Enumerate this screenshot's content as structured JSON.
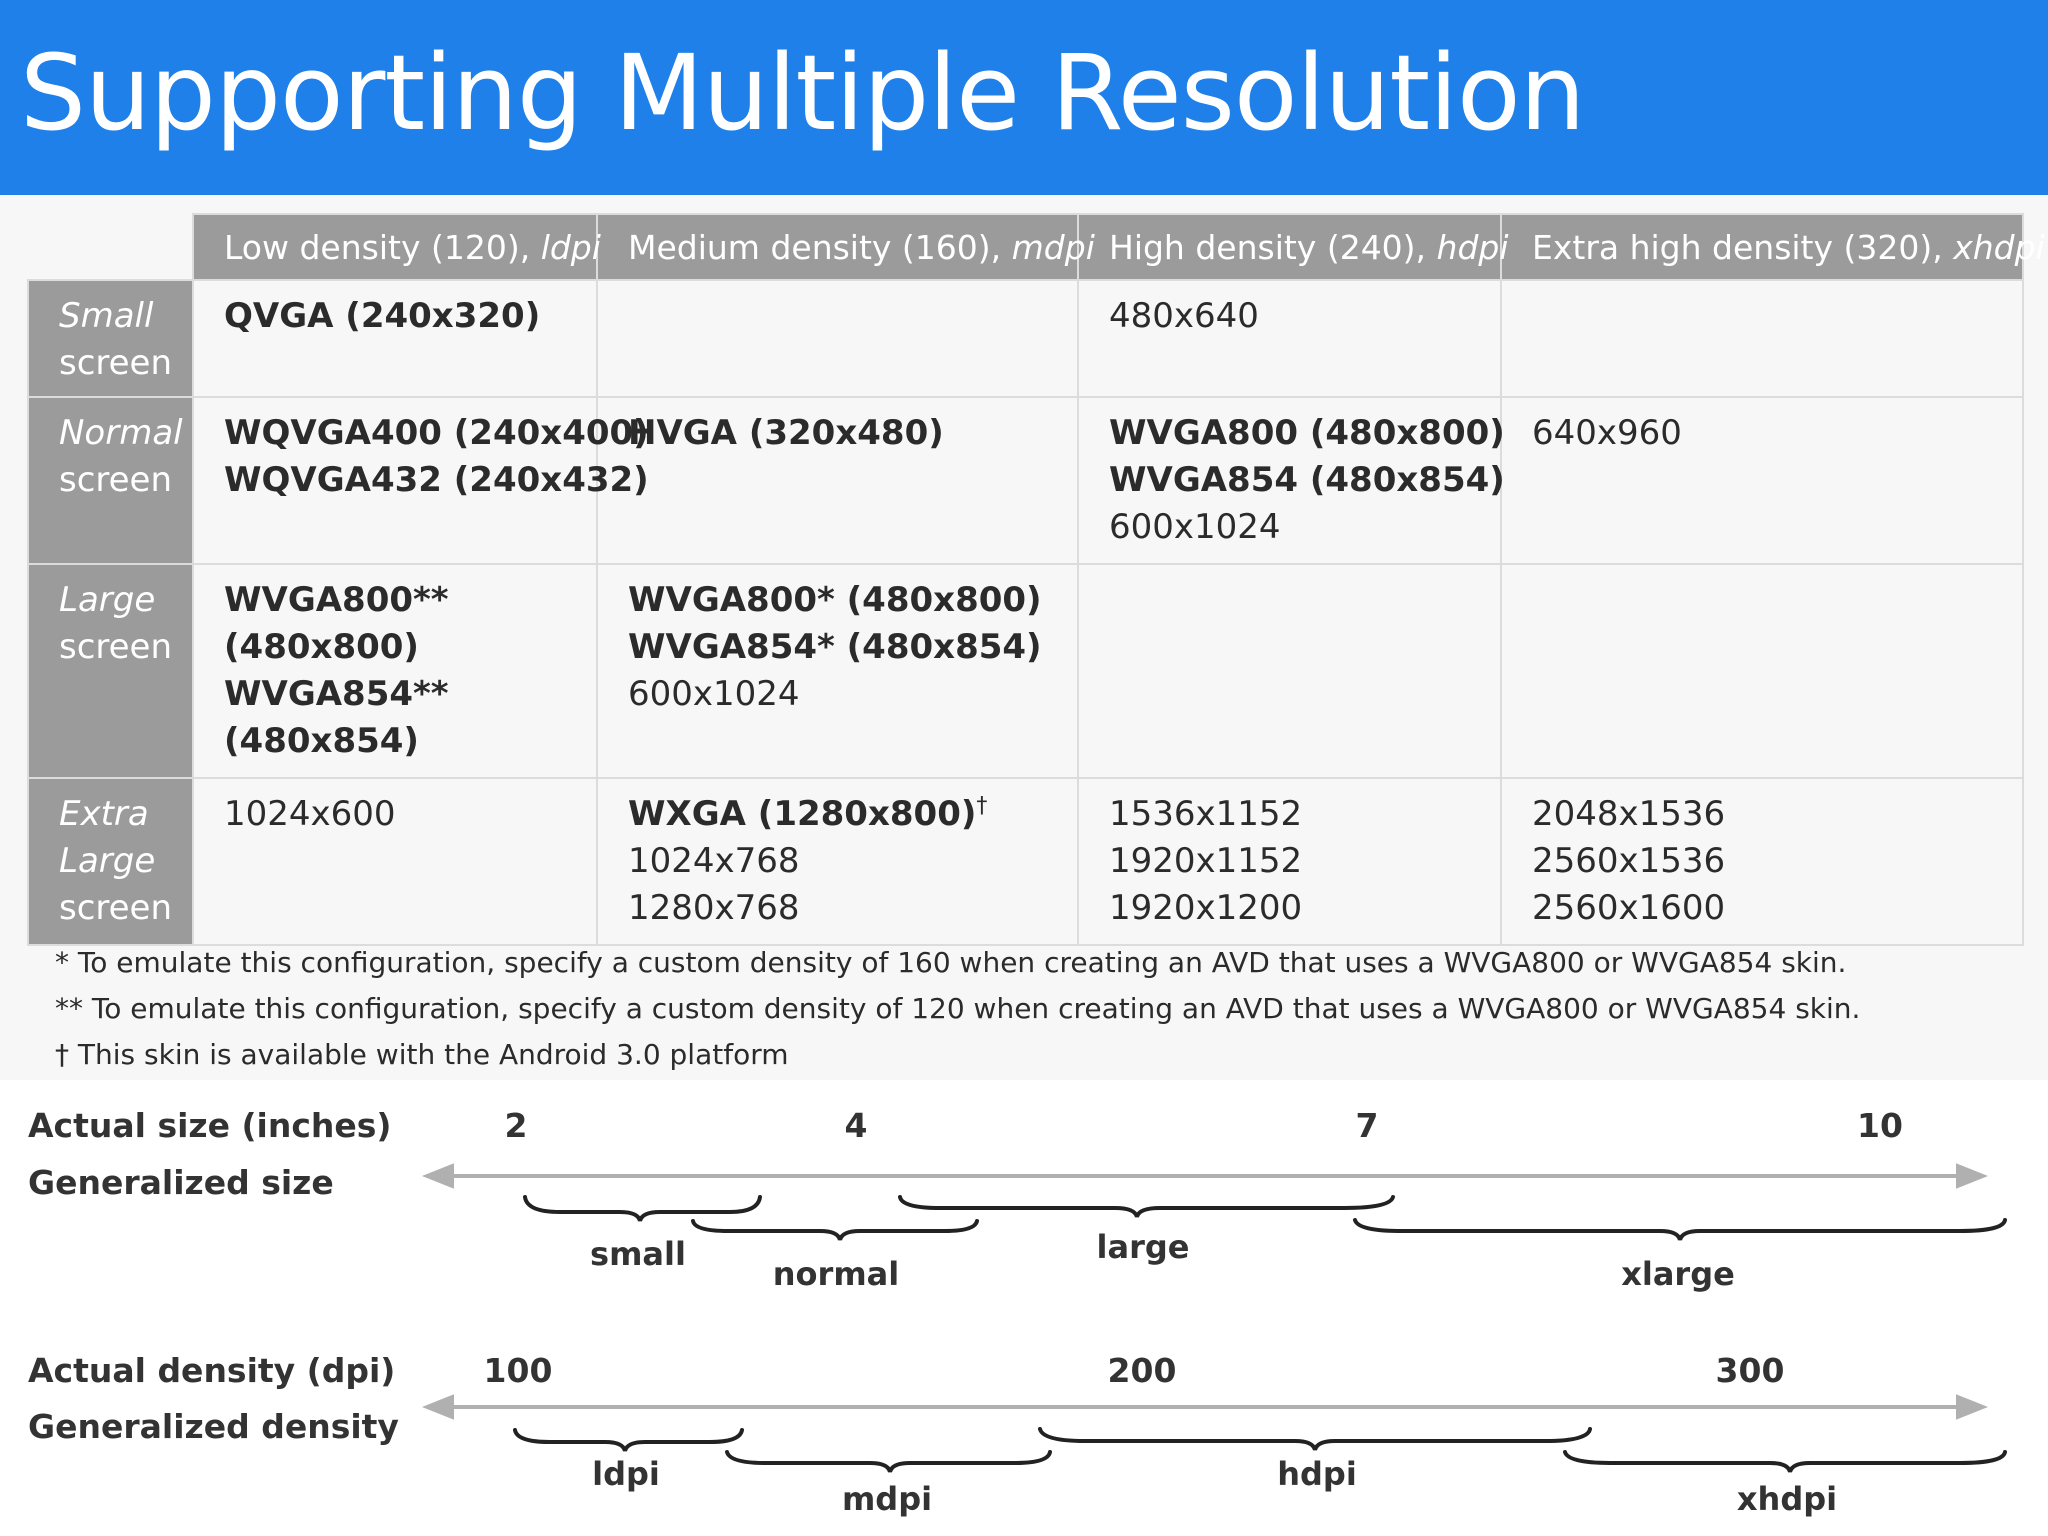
{
  "title": "Supporting Multiple Resolution",
  "table": {
    "headers": [
      {
        "text": "Low density (120), ",
        "italic": "ldpi"
      },
      {
        "text": "Medium density (160), ",
        "italic": "mdpi"
      },
      {
        "text": "High density (240), ",
        "italic": "hdpi"
      },
      {
        "text": "Extra high density (320), ",
        "italic": "xhdpi"
      }
    ],
    "rows": [
      {
        "label_italic": "Small",
        "label_rest": "screen",
        "cells": [
          [
            {
              "t": "QVGA (240x320)",
              "b": true
            }
          ],
          [],
          [
            {
              "t": "480x640",
              "b": false
            }
          ],
          []
        ]
      },
      {
        "label_italic": "Normal",
        "label_rest": "screen",
        "cells": [
          [
            {
              "t": "WQVGA400 (240x400)",
              "b": true
            },
            {
              "t": "WQVGA432 (240x432)",
              "b": true
            }
          ],
          [
            {
              "t": "HVGA (320x480)",
              "b": true
            }
          ],
          [
            {
              "t": "WVGA800 (480x800)",
              "b": true
            },
            {
              "t": "WVGA854 (480x854)",
              "b": true
            },
            {
              "t": "600x1024",
              "b": false
            }
          ],
          [
            {
              "t": "640x960",
              "b": false
            }
          ]
        ]
      },
      {
        "label_italic": "Large",
        "label_rest": "screen",
        "cells": [
          [
            {
              "t": "WVGA800**",
              "b": true
            },
            {
              "t": "(480x800)",
              "b": true
            },
            {
              "t": "WVGA854**",
              "b": true
            },
            {
              "t": "(480x854)",
              "b": true
            }
          ],
          [
            {
              "t": "WVGA800* (480x800)",
              "b": true
            },
            {
              "t": "WVGA854* (480x854)",
              "b": true
            },
            {
              "t": "600x1024",
              "b": false
            }
          ],
          [],
          []
        ]
      },
      {
        "label_italic": "Extra Large",
        "label_rest": "screen",
        "cells": [
          [
            {
              "t": "1024x600",
              "b": false
            }
          ],
          [
            {
              "t": "WXGA (1280x800)",
              "b": true,
              "sup": "†"
            },
            {
              "t": "1024x768",
              "b": false
            },
            {
              "t": "1280x768",
              "b": false
            }
          ],
          [
            {
              "t": "1536x1152",
              "b": false
            },
            {
              "t": "1920x1152",
              "b": false
            },
            {
              "t": "1920x1200",
              "b": false
            }
          ],
          [
            {
              "t": "2048x1536",
              "b": false
            },
            {
              "t": "2560x1536",
              "b": false
            },
            {
              "t": "2560x1600",
              "b": false
            }
          ]
        ]
      }
    ]
  },
  "footnotes": [
    "* To emulate this configuration, specify a custom density of 160 when creating an AVD that uses a WVGA800 or WVGA854 skin.",
    "** To emulate this configuration, specify a custom density of 120 when creating an AVD that uses a WVGA800 or WVGA854 skin.",
    "† This skin is available with the Android 3.0 platform"
  ],
  "diagram": {
    "size": {
      "axis_label": "Actual size (inches)",
      "group_label": "Generalized size",
      "ticks": [
        "2",
        "4",
        "7",
        "10"
      ],
      "groups": [
        "small",
        "normal",
        "large",
        "xlarge"
      ]
    },
    "density": {
      "axis_label": "Actual density (dpi)",
      "group_label": "Generalized density",
      "ticks": [
        "100",
        "200",
        "300"
      ],
      "groups": [
        "ldpi",
        "mdpi",
        "hdpi",
        "xhdpi"
      ]
    }
  },
  "colors": {
    "title_bar": "#1e80e8",
    "header_cell": "#9b9b9b",
    "cell_bg": "#f7f7f7",
    "text": "#2b2b2b"
  }
}
